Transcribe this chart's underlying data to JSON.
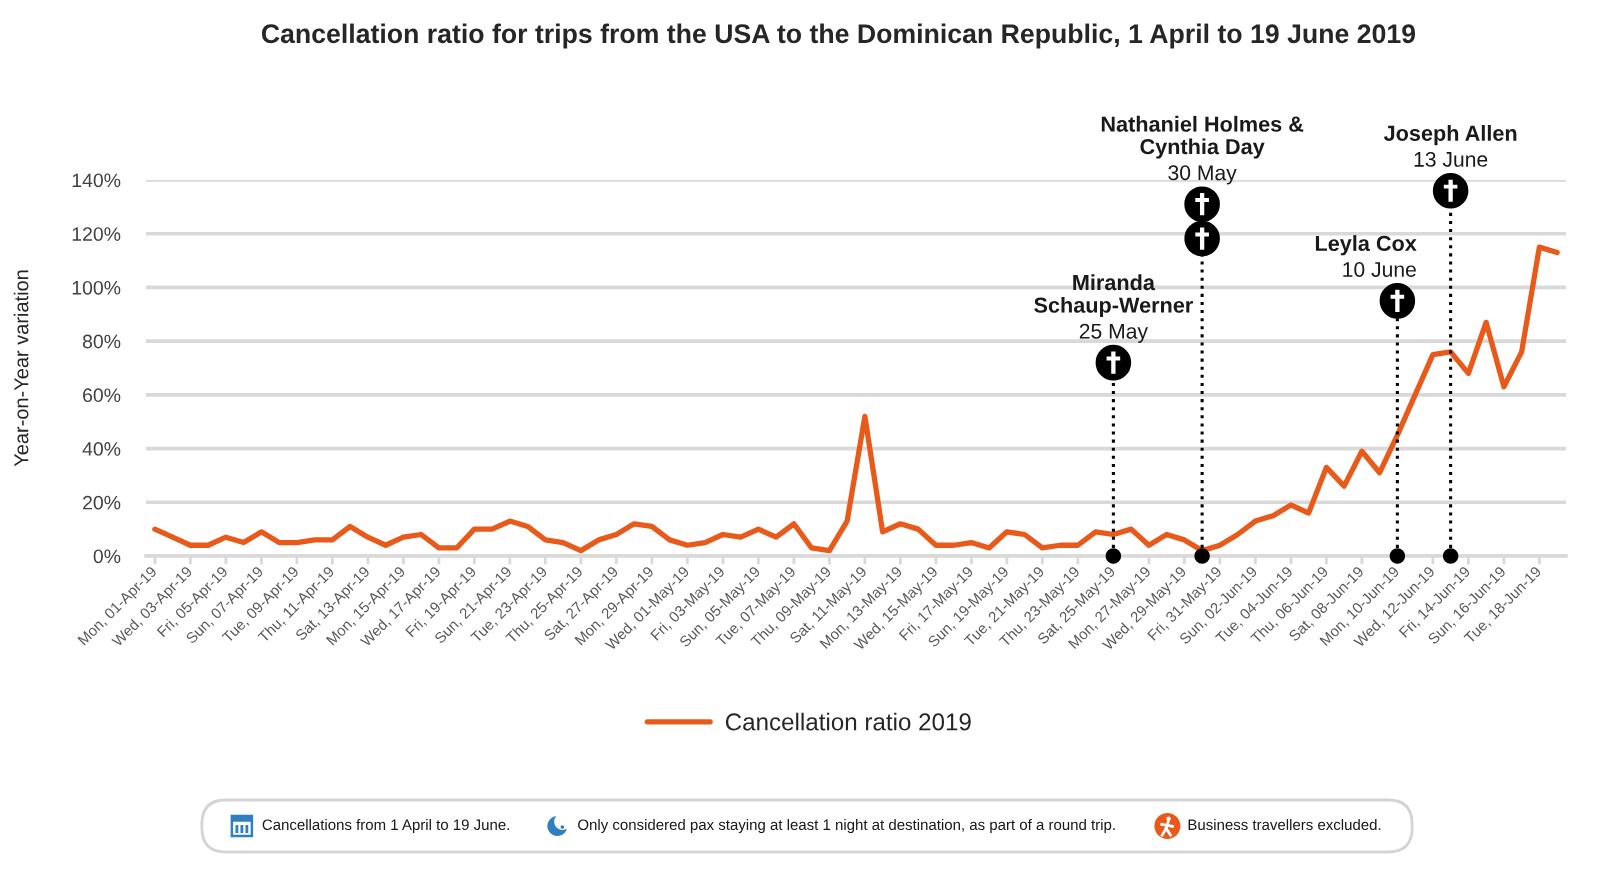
{
  "chart_data": {
    "type": "line",
    "title": "Cancellation ratio for trips from the USA to the Dominican Republic, 1 April to 19 June 2019",
    "ylabel": "Year-on-Year variation",
    "x": [
      "2019-04-01",
      "2019-04-02",
      "2019-04-03",
      "2019-04-04",
      "2019-04-05",
      "2019-04-06",
      "2019-04-07",
      "2019-04-08",
      "2019-04-09",
      "2019-04-10",
      "2019-04-11",
      "2019-04-12",
      "2019-04-13",
      "2019-04-14",
      "2019-04-15",
      "2019-04-16",
      "2019-04-17",
      "2019-04-18",
      "2019-04-19",
      "2019-04-20",
      "2019-04-21",
      "2019-04-22",
      "2019-04-23",
      "2019-04-24",
      "2019-04-25",
      "2019-04-26",
      "2019-04-27",
      "2019-04-28",
      "2019-04-29",
      "2019-04-30",
      "2019-05-01",
      "2019-05-02",
      "2019-05-03",
      "2019-05-04",
      "2019-05-05",
      "2019-05-06",
      "2019-05-07",
      "2019-05-08",
      "2019-05-09",
      "2019-05-10",
      "2019-05-11",
      "2019-05-12",
      "2019-05-13",
      "2019-05-14",
      "2019-05-15",
      "2019-05-16",
      "2019-05-17",
      "2019-05-18",
      "2019-05-19",
      "2019-05-20",
      "2019-05-21",
      "2019-05-22",
      "2019-05-23",
      "2019-05-24",
      "2019-05-25",
      "2019-05-26",
      "2019-05-27",
      "2019-05-28",
      "2019-05-29",
      "2019-05-30",
      "2019-05-31",
      "2019-06-01",
      "2019-06-02",
      "2019-06-03",
      "2019-06-04",
      "2019-06-05",
      "2019-06-06",
      "2019-06-07",
      "2019-06-08",
      "2019-06-09",
      "2019-06-10",
      "2019-06-11",
      "2019-06-12",
      "2019-06-13",
      "2019-06-14",
      "2019-06-15",
      "2019-06-16",
      "2019-06-17",
      "2019-06-18",
      "2019-06-19"
    ],
    "series": [
      {
        "name": "Cancellation ratio 2019",
        "color": "#e8591a",
        "values": [
          10,
          7,
          4,
          4,
          7,
          5,
          9,
          5,
          5,
          6,
          6,
          11,
          7,
          4,
          7,
          8,
          3,
          3,
          10,
          10,
          13,
          11,
          6,
          5,
          2,
          6,
          8,
          12,
          11,
          6,
          4,
          5,
          8,
          7,
          10,
          7,
          12,
          3,
          2,
          13,
          52,
          9,
          12,
          10,
          4,
          4,
          5,
          3,
          9,
          8,
          3,
          4,
          4,
          9,
          8,
          10,
          4,
          8,
          6,
          2,
          4,
          8,
          13,
          15,
          19,
          16,
          33,
          26,
          39,
          31,
          45,
          60,
          75,
          76,
          68,
          87,
          63,
          76,
          115,
          113
        ]
      }
    ],
    "xlim": [
      "2019-03-31T12:00",
      "2019-06-19T12:00"
    ],
    "xticks": [
      {
        "value": "2019-04-01",
        "label": "Mon, 01-Apr-19"
      },
      {
        "value": "2019-04-03",
        "label": "Wed, 03-Apr-19"
      },
      {
        "value": "2019-04-05",
        "label": "Fri, 05-Apr-19"
      },
      {
        "value": "2019-04-07",
        "label": "Sun, 07-Apr-19"
      },
      {
        "value": "2019-04-09",
        "label": "Tue, 09-Apr-19"
      },
      {
        "value": "2019-04-11",
        "label": "Thu, 11-Apr-19"
      },
      {
        "value": "2019-04-13",
        "label": "Sat, 13-Apr-19"
      },
      {
        "value": "2019-04-15",
        "label": "Mon, 15-Apr-19"
      },
      {
        "value": "2019-04-17",
        "label": "Wed, 17-Apr-19"
      },
      {
        "value": "2019-04-19",
        "label": "Fri, 19-Apr-19"
      },
      {
        "value": "2019-04-21",
        "label": "Sun, 21-Apr-19"
      },
      {
        "value": "2019-04-23",
        "label": "Tue, 23-Apr-19"
      },
      {
        "value": "2019-04-25",
        "label": "Thu, 25-Apr-19"
      },
      {
        "value": "2019-04-27",
        "label": "Sat, 27-Apr-19"
      },
      {
        "value": "2019-04-29",
        "label": "Mon, 29-Apr-19"
      },
      {
        "value": "2019-05-01",
        "label": "Wed, 01-May-19"
      },
      {
        "value": "2019-05-03",
        "label": "Fri, 03-May-19"
      },
      {
        "value": "2019-05-05",
        "label": "Sun, 05-May-19"
      },
      {
        "value": "2019-05-07",
        "label": "Tue, 07-May-19"
      },
      {
        "value": "2019-05-09",
        "label": "Thu, 09-May-19"
      },
      {
        "value": "2019-05-11",
        "label": "Sat, 11-May-19"
      },
      {
        "value": "2019-05-13",
        "label": "Mon, 13-May-19"
      },
      {
        "value": "2019-05-15",
        "label": "Wed, 15-May-19"
      },
      {
        "value": "2019-05-17",
        "label": "Fri, 17-May-19"
      },
      {
        "value": "2019-05-19",
        "label": "Sun, 19-May-19"
      },
      {
        "value": "2019-05-21",
        "label": "Tue, 21-May-19"
      },
      {
        "value": "2019-05-23",
        "label": "Thu, 23-May-19"
      },
      {
        "value": "2019-05-25",
        "label": "Sat, 25-May-19"
      },
      {
        "value": "2019-05-27",
        "label": "Mon, 27-May-19"
      },
      {
        "value": "2019-05-29",
        "label": "Wed, 29-May-19"
      },
      {
        "value": "2019-05-31",
        "label": "Fri, 31-May-19"
      },
      {
        "value": "2019-06-02",
        "label": "Sun, 02-Jun-19"
      },
      {
        "value": "2019-06-04",
        "label": "Tue, 04-Jun-19"
      },
      {
        "value": "2019-06-06",
        "label": "Thu, 06-Jun-19"
      },
      {
        "value": "2019-06-08",
        "label": "Sat, 08-Jun-19"
      },
      {
        "value": "2019-06-10",
        "label": "Mon, 10-Jun-19"
      },
      {
        "value": "2019-06-12",
        "label": "Wed, 12-Jun-19"
      },
      {
        "value": "2019-06-14",
        "label": "Fri, 14-Jun-19"
      },
      {
        "value": "2019-06-16",
        "label": "Sun, 16-Jun-19"
      },
      {
        "value": "2019-06-18",
        "label": "Tue, 18-Jun-19"
      }
    ],
    "ylim": [
      0,
      140
    ],
    "yticks": [
      {
        "value": 0,
        "label": "0%"
      },
      {
        "value": 20,
        "label": "20%"
      },
      {
        "value": 40,
        "label": "40%"
      },
      {
        "value": 60,
        "label": "60%"
      },
      {
        "value": 80,
        "label": "80%"
      },
      {
        "value": 100,
        "label": "100%"
      },
      {
        "value": 120,
        "label": "120%"
      },
      {
        "value": 140,
        "label": "140%"
      }
    ],
    "grid": "y",
    "legend": "bottom",
    "ref_lines": [
      {
        "axis": "x",
        "value": "2019-05-25",
        "label": "Miranda\nSchaup-Werner",
        "color": "#000000",
        "line_style": "dotted"
      },
      {
        "axis": "x",
        "value": "2019-05-30",
        "label": "Nathaniel Holmes &\nCynthia Day",
        "color": "#000000",
        "line_style": "dotted"
      },
      {
        "axis": "x",
        "value": "2019-06-10",
        "label": "Leyla Cox",
        "color": "#000000",
        "line_style": "dotted"
      },
      {
        "axis": "x",
        "value": "2019-06-13",
        "label": "Joseph Allen",
        "color": "#000000",
        "line_style": "dotted"
      }
    ],
    "annotations": [
      {
        "text": "25 May",
        "x": "2019-05-25",
        "y": 72
      },
      {
        "text": "30 May",
        "x": "2019-05-30",
        "y": 131
      },
      {
        "text": "10 June",
        "x": "2019-06-10",
        "y": 95
      },
      {
        "text": "13 June",
        "x": "2019-06-13",
        "y": 136
      },
      "Cancellations from 1 April to 19 June.",
      "Only considered pax staying at least 1 night at destination, as part of a round trip.",
      "Business travellers excluded."
    ]
  }
}
